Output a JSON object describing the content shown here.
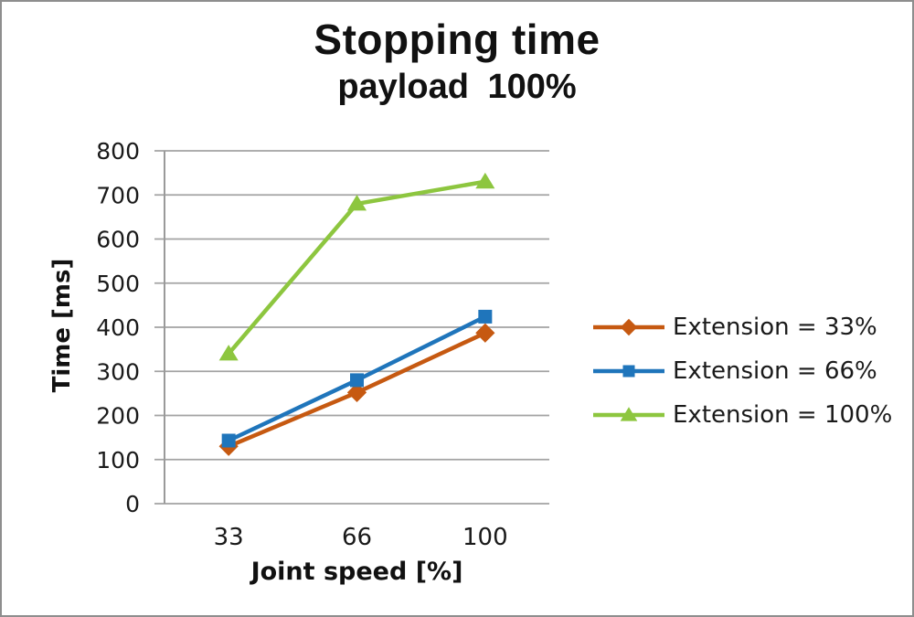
{
  "frame": {
    "background": "#FFFFFF",
    "border_color": "#8E8E8E"
  },
  "chart_data": {
    "type": "line",
    "title": "Stopping time",
    "subtitle": "payload 100%",
    "xlabel": "Joint speed [%]",
    "ylabel": "Time [ms]",
    "categories": [
      "33",
      "66",
      "100"
    ],
    "ylim": [
      0,
      800
    ],
    "ytick_step": 100,
    "grid": true,
    "legend_position": "right-middle",
    "axis_color": "#9A9A9A",
    "gridline_color": "#A3A3A3",
    "text_color": "#1A1A1A",
    "series": [
      {
        "name": "Extension = 33%",
        "marker": "diamond",
        "color": "#C65911",
        "values": [
          130,
          252,
          387
        ]
      },
      {
        "name": "Extension = 66%",
        "marker": "square",
        "color": "#1F75BB",
        "values": [
          143,
          280,
          424
        ]
      },
      {
        "name": "Extension = 100%",
        "marker": "triangle",
        "color": "#8DC63F",
        "values": [
          340,
          680,
          730
        ]
      }
    ]
  }
}
